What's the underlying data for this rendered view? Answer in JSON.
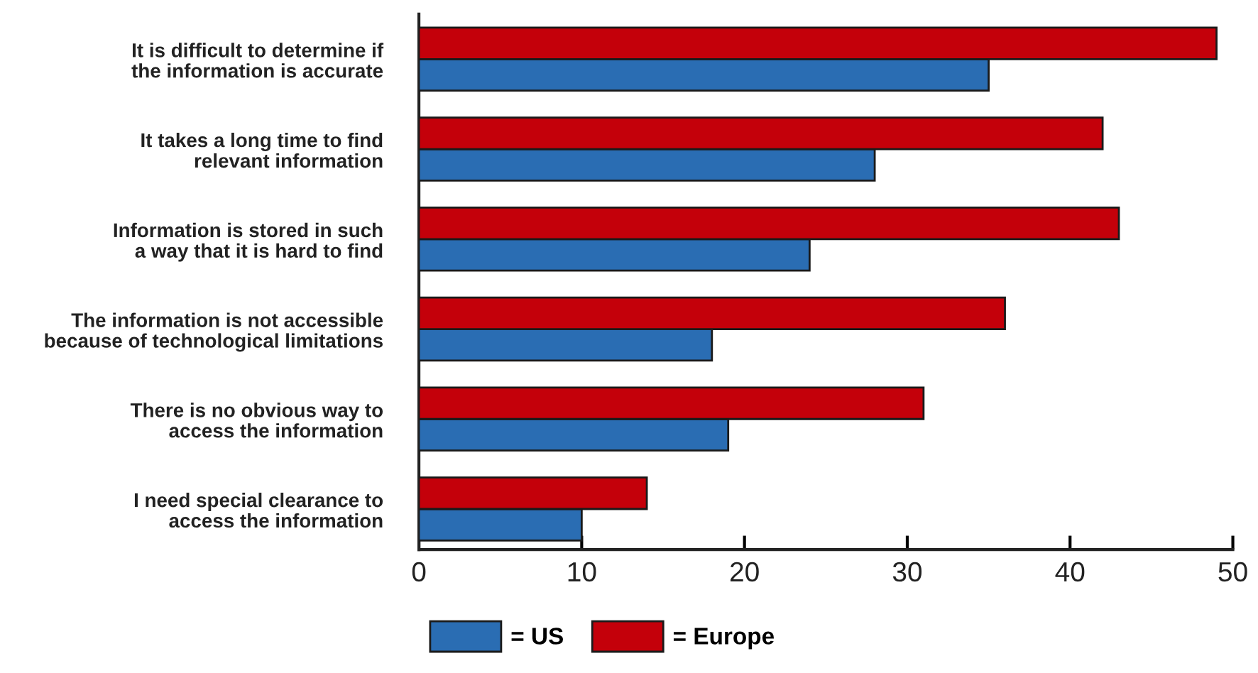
{
  "chart_data": {
    "type": "bar",
    "orientation": "horizontal",
    "categories": [
      "It is difficult to determine if\nthe information is accurate",
      "It takes a long time to find\nrelevant information",
      "Information is stored in such\na way that it is hard to find",
      "The information is not accessible\nbecause of technological limitations",
      "There is no obvious way to\naccess the information",
      "I need special clearance to\naccess the information"
    ],
    "series": [
      {
        "name": "= US",
        "color": "#2a6db3",
        "values": [
          35,
          28,
          24,
          18,
          19,
          10
        ]
      },
      {
        "name": "= Europe",
        "color": "#c4000a",
        "values": [
          49,
          42,
          43,
          36,
          31,
          14
        ]
      }
    ],
    "xlim": [
      0,
      50
    ],
    "xticks": [
      0,
      10,
      20,
      30,
      40,
      50
    ],
    "grid": false,
    "legend": "bottom"
  }
}
